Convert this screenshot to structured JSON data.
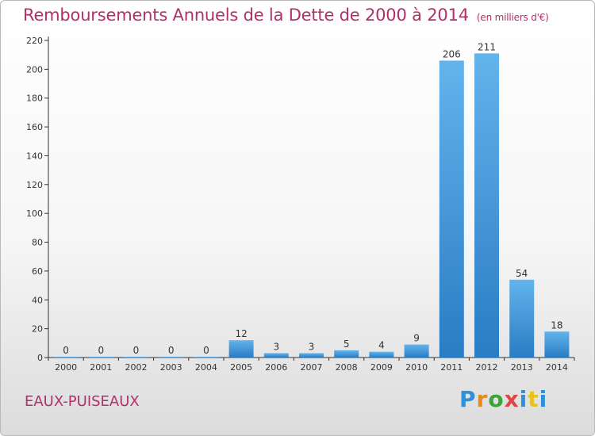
{
  "header": {
    "title": "Remboursements Annuels de la Dette de 2000 à 2014",
    "subtitle": "(en milliers d'€)"
  },
  "footer": {
    "commune": "EAUX-PUISEAUX",
    "logo_text": "Proxiti"
  },
  "colors": {
    "title": "#b0306a",
    "bar_top": "#62b4ec",
    "bar_bottom": "#2a7cc4",
    "axis": "#333333"
  },
  "chart_data": {
    "type": "bar",
    "title": "Remboursements Annuels de la Dette de 2000 à 2014",
    "subtitle": "(en milliers d'€)",
    "xlabel": "",
    "ylabel": "",
    "categories": [
      "2000",
      "2001",
      "2002",
      "2003",
      "2004",
      "2005",
      "2006",
      "2007",
      "2008",
      "2009",
      "2010",
      "2011",
      "2012",
      "2013",
      "2014"
    ],
    "values": [
      0,
      0,
      0,
      0,
      0,
      12,
      3,
      3,
      5,
      4,
      9,
      206,
      211,
      54,
      18
    ],
    "data_labels": [
      "0",
      "0",
      "0",
      "0",
      "0",
      "12",
      "3",
      "3",
      "5",
      "4",
      "9",
      "206",
      "211",
      "54",
      "18"
    ],
    "ylim": [
      0,
      220
    ],
    "yticks": [
      0,
      20,
      40,
      60,
      80,
      100,
      120,
      140,
      160,
      180,
      200,
      220
    ],
    "grid": false,
    "legend": "none"
  }
}
